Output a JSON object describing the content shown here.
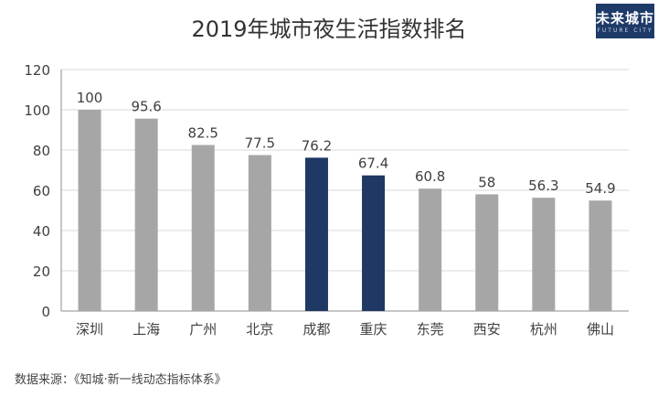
{
  "logo": {
    "text": "未来城市",
    "sub": "FUTURE CITY"
  },
  "source": "数据来源：《知城·新一线动态指标体系》",
  "chart_data": {
    "type": "bar",
    "title": "2019年城市夜生活指数排名",
    "xlabel": "",
    "ylabel": "",
    "categories": [
      "深圳",
      "上海",
      "广州",
      "北京",
      "成都",
      "重庆",
      "东莞",
      "西安",
      "杭州",
      "佛山"
    ],
    "values": [
      100,
      95.6,
      82.5,
      77.5,
      76.2,
      67.4,
      60.8,
      58,
      56.3,
      54.9
    ],
    "value_labels": [
      "100",
      "95.6",
      "82.5",
      "77.5",
      "76.2",
      "67.4",
      "60.8",
      "58",
      "56.3",
      "54.9"
    ],
    "highlight": [
      "成都",
      "重庆"
    ],
    "ylim": [
      0,
      120
    ],
    "yticks": [
      0,
      20,
      40,
      60,
      80,
      100,
      120
    ],
    "grid": true,
    "legend": "none",
    "colors": {
      "bar": "#a6a6a6",
      "highlight": "#1f3864",
      "grid": "#d9d9d9",
      "axis": "#8c8c8c",
      "text": "#404040"
    }
  }
}
